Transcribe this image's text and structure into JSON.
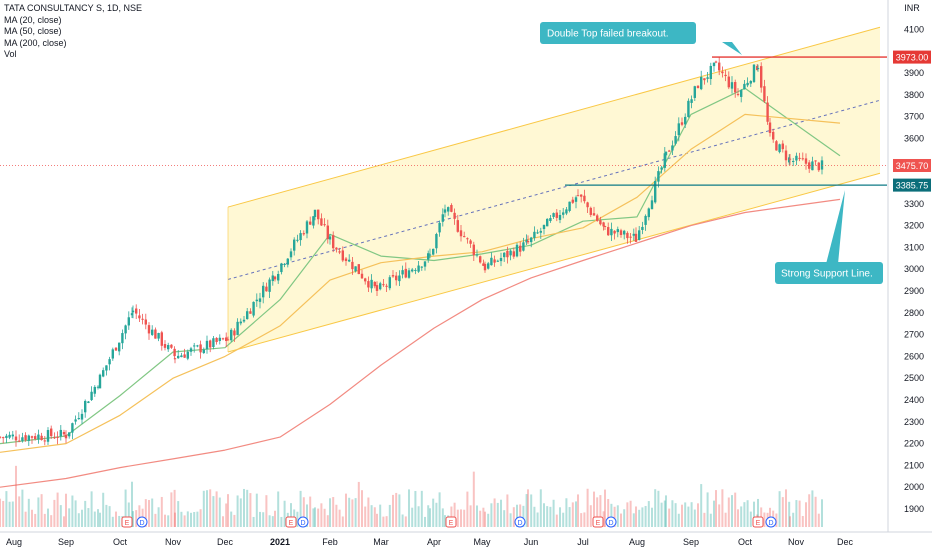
{
  "legend": {
    "title": "TATA CONSULTANCY S, 1D, NSE",
    "ma20": "MA (20, close)",
    "ma50": "MA (50, close)",
    "ma200": "MA (200, close)",
    "vol": "Vol"
  },
  "currency": "INR",
  "colors": {
    "up": "#26a69a",
    "down": "#ef5350",
    "ma20": "#81c784",
    "ma50": "#f5c15b",
    "ma200": "#f28b82",
    "channel": "#fff3b0",
    "channel_line": "#f9c846",
    "midline": "#3f51b5",
    "callout": "#3db7c4",
    "support": "#0e7a86",
    "resistance": "#e53935"
  },
  "price_tags": {
    "resistance": "3973.00",
    "current": "3475.70",
    "support": "3385.75"
  },
  "annotations": {
    "top": "Double Top failed breakout.",
    "bottom": "Strong Support Line."
  },
  "event_markers": [
    "E",
    "D",
    "E",
    "D",
    "E",
    "D",
    "E",
    "D",
    "E",
    "D"
  ],
  "chart_data": {
    "type": "line",
    "symbol": "TATA CONSULTANCY S",
    "interval": "1D",
    "exchange": "NSE",
    "y_ticks": [
      1900,
      2000,
      2100,
      2200,
      2300,
      2400,
      2500,
      2600,
      2700,
      2800,
      2900,
      3000,
      3100,
      3200,
      3300,
      3400,
      3500,
      3600,
      3700,
      3800,
      3900,
      4000,
      4100
    ],
    "ylim": [
      1840,
      4190
    ],
    "x_ticks": [
      "Aug",
      "Sep",
      "Oct",
      "Nov",
      "Dec",
      "2021",
      "Feb",
      "Mar",
      "Apr",
      "May",
      "Jun",
      "Jul",
      "Aug",
      "Sep",
      "Oct",
      "Nov",
      "Dec"
    ],
    "series": [
      {
        "name": "Close",
        "x": [
          "Aug",
          "Sep",
          "Oct",
          "Oct",
          "Nov",
          "Dec",
          "2021",
          "Feb",
          "Feb",
          "Mar",
          "Apr",
          "Apr",
          "May",
          "Jun",
          "Jun",
          "Jul",
          "Jul",
          "Aug",
          "Aug",
          "Sep",
          "Sep",
          "Oct",
          "Oct",
          "Nov",
          "Nov"
        ],
        "values": [
          2230,
          2240,
          2500,
          2810,
          2600,
          2680,
          2980,
          3260,
          3130,
          2900,
          3060,
          3280,
          3010,
          3120,
          3340,
          3180,
          3140,
          3520,
          3850,
          3930,
          3800,
          3940,
          3600,
          3500,
          3470
        ]
      },
      {
        "name": "MA (20, close)",
        "x": [
          "Aug",
          "Sep",
          "Oct",
          "Nov",
          "Dec",
          "2021",
          "Feb",
          "Mar",
          "Apr",
          "May",
          "Jun",
          "Jul",
          "Aug",
          "Sep",
          "Oct",
          "Nov"
        ],
        "values": [
          2200,
          2235,
          2420,
          2620,
          2640,
          2860,
          3160,
          3060,
          3040,
          3070,
          3110,
          3220,
          3240,
          3710,
          3830,
          3520
        ]
      },
      {
        "name": "MA (50, close)",
        "x": [
          "Aug",
          "Sep",
          "Oct",
          "Nov",
          "Dec",
          "2021",
          "Feb",
          "Mar",
          "Apr",
          "May",
          "Jun",
          "Jul",
          "Aug",
          "Sep",
          "Oct",
          "Nov"
        ],
        "values": [
          2160,
          2200,
          2330,
          2500,
          2600,
          2740,
          2950,
          3030,
          3060,
          3080,
          3140,
          3190,
          3330,
          3550,
          3710,
          3670
        ]
      },
      {
        "name": "MA (200, close)",
        "x": [
          "Aug",
          "Sep",
          "Oct",
          "Nov",
          "Dec",
          "2021",
          "Feb",
          "Mar",
          "Apr",
          "May",
          "Jun",
          "Jul",
          "Aug",
          "Sep",
          "Oct",
          "Nov"
        ],
        "values": [
          2000,
          2040,
          2090,
          2130,
          2170,
          2230,
          2380,
          2560,
          2730,
          2860,
          2960,
          3040,
          3120,
          3200,
          3260,
          3320
        ]
      }
    ],
    "levels": [
      {
        "label": "3973.00",
        "value": 3973.0
      },
      {
        "label": "3475.70",
        "value": 3475.7
      },
      {
        "label": "3385.75",
        "value": 3385.75
      }
    ],
    "annotations": [
      "Double Top failed breakout.",
      "Strong Support Line."
    ],
    "grid": false,
    "legend_position": "top-left"
  }
}
